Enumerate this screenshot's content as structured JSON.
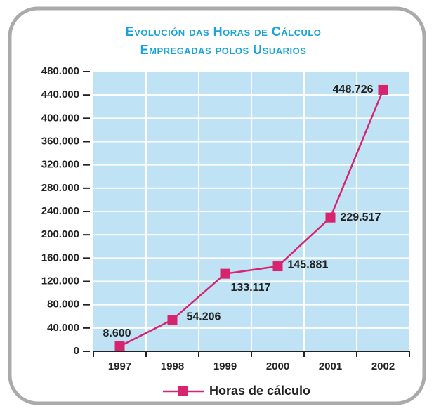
{
  "chart_data": {
    "type": "line",
    "title": [
      "Evolución das Horas de Cálculo",
      "Empregadas polos Usuarios"
    ],
    "categories": [
      "1997",
      "1998",
      "1999",
      "2000",
      "2001",
      "2002"
    ],
    "series": [
      {
        "name": "Horas de cálculo",
        "color": "#d6246e",
        "values": [
          8600,
          54206,
          133117,
          145881,
          229517,
          448726
        ],
        "value_labels": [
          "8.600",
          "54.206",
          "133.117",
          "145.881",
          "229.517",
          "448.726"
        ]
      }
    ],
    "ylim": [
      0,
      480000
    ],
    "yticks": [
      {
        "value": 0,
        "label": "0"
      },
      {
        "value": 40000,
        "label": "40.000"
      },
      {
        "value": 80000,
        "label": "80.000"
      },
      {
        "value": 120000,
        "label": "120.000"
      },
      {
        "value": 160000,
        "label": "160.000"
      },
      {
        "value": 200000,
        "label": "200.000"
      },
      {
        "value": 240000,
        "label": "240.000"
      },
      {
        "value": 280000,
        "label": "280.000"
      },
      {
        "value": 320000,
        "label": "320.000"
      },
      {
        "value": 360000,
        "label": "360.000"
      },
      {
        "value": 400000,
        "label": "400.000"
      },
      {
        "value": 440000,
        "label": "440.000"
      },
      {
        "value": 480000,
        "label": "480.000"
      }
    ],
    "grid": true,
    "legend": "bottom"
  }
}
